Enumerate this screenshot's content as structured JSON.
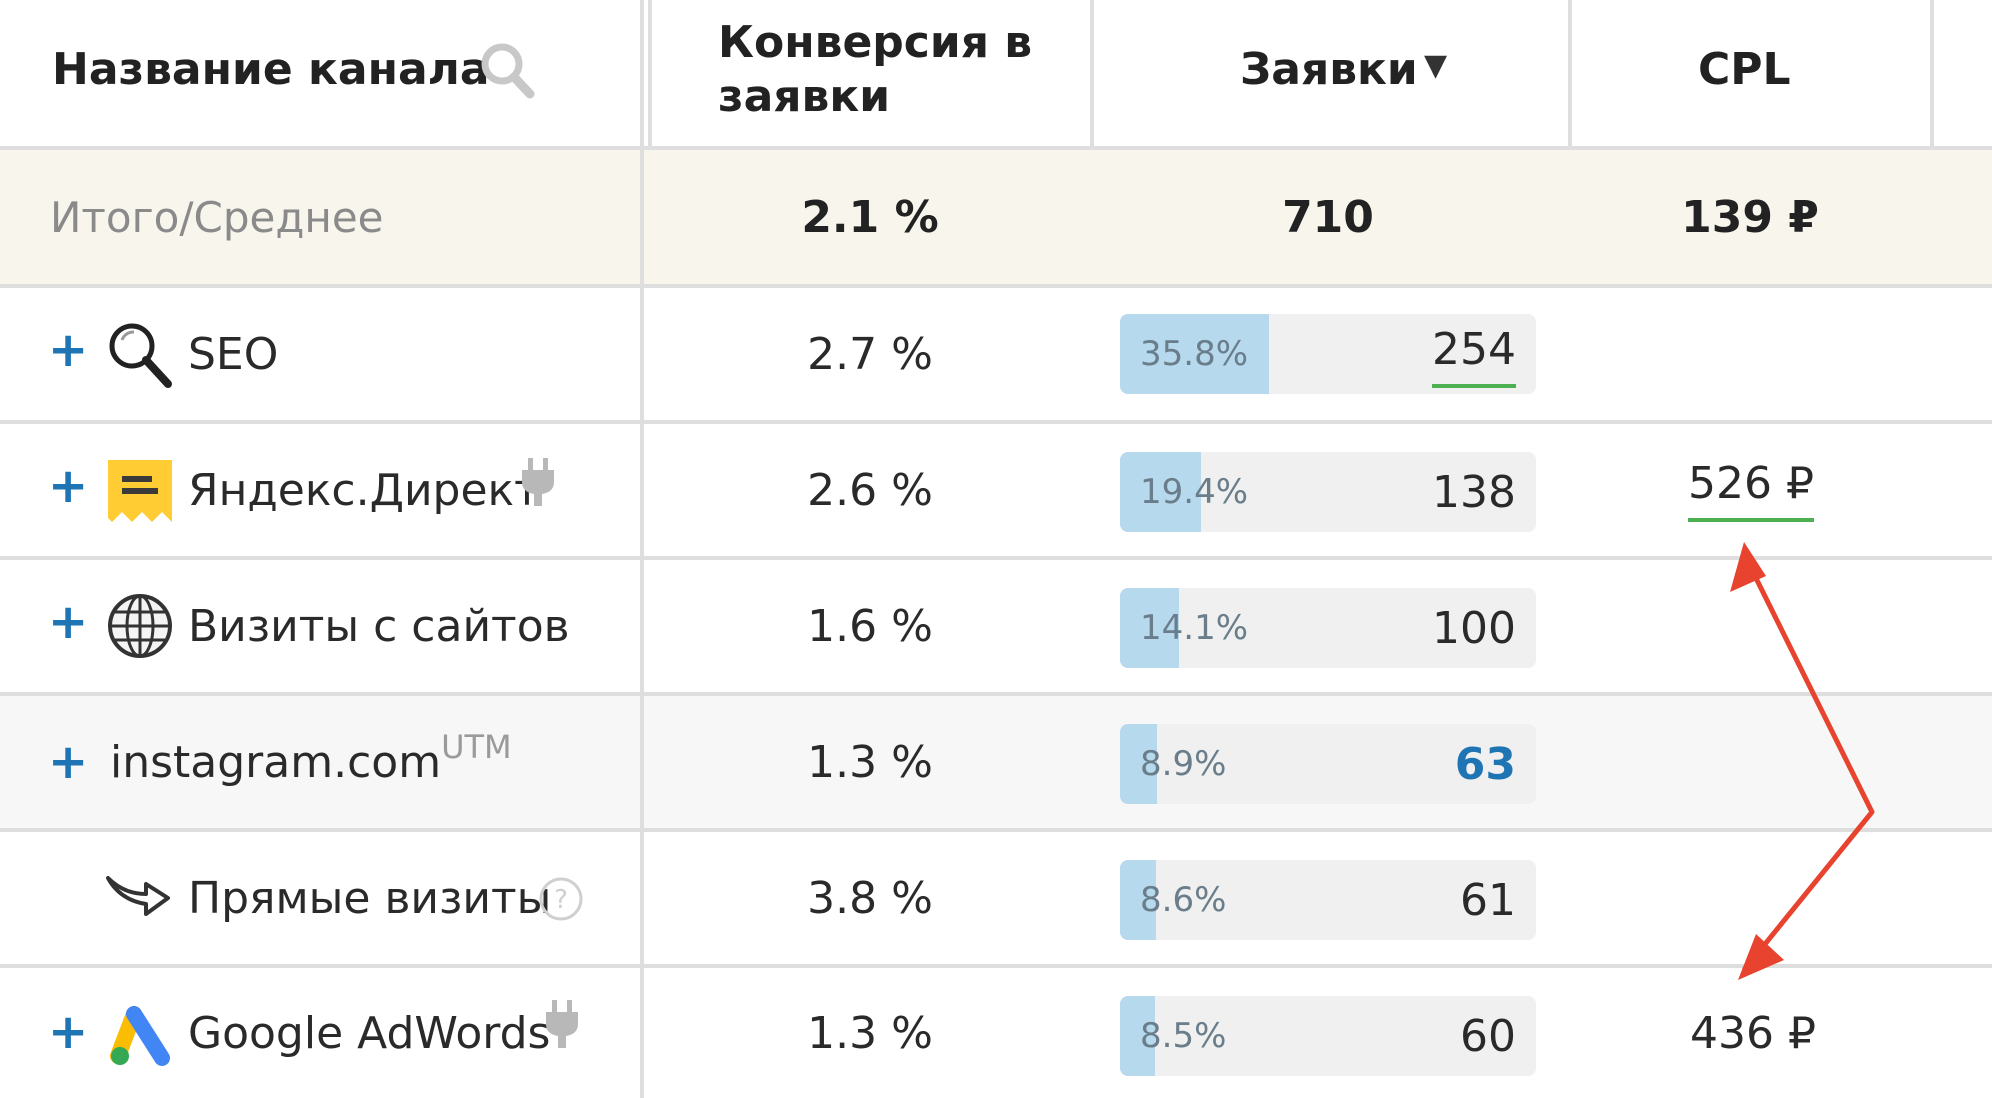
{
  "header": {
    "channel_name": "Название канала",
    "conversion_line1": "Конверсия в",
    "conversion_line2": "заявки",
    "leads": "Заявки",
    "sort_indicator": "▼",
    "cpl": "CPL"
  },
  "totals": {
    "label": "Итого/Среднее",
    "conversion": "2.1 %",
    "leads": "710",
    "cpl": "139 ₽"
  },
  "rows": [
    {
      "name": "SEO",
      "icon": "magnifier-icon",
      "expandable": true,
      "conversion": "2.7 %",
      "share_label": "35.8%",
      "share": 35.8,
      "leads": "254",
      "cpl": ""
    },
    {
      "name": "Яндекс.Директ",
      "icon": "yandex-direct-icon",
      "expandable": true,
      "plugin": true,
      "conversion": "2.6 %",
      "share_label": "19.4%",
      "share": 19.4,
      "leads": "138",
      "cpl": "526 ₽"
    },
    {
      "name": "Визиты с сайтов",
      "icon": "globe-icon",
      "expandable": true,
      "conversion": "1.6 %",
      "share_label": "14.1%",
      "share": 14.1,
      "leads": "100",
      "cpl": ""
    },
    {
      "name": "instagram.com",
      "suffix": "UTM",
      "expandable": true,
      "conversion": "1.3 %",
      "share_label": "8.9%",
      "share": 8.9,
      "leads": "63",
      "cpl": ""
    },
    {
      "name": "Прямые визиты",
      "icon": "direct-visit-icon",
      "expandable": false,
      "help": true,
      "conversion": "3.8 %",
      "share_label": "8.6%",
      "share": 8.6,
      "leads": "61",
      "cpl": ""
    },
    {
      "name": "Google AdWords",
      "icon": "google-ads-icon",
      "expandable": true,
      "plugin": true,
      "conversion": "1.3 %",
      "share_label": "8.5%",
      "share": 8.5,
      "leads": "60",
      "cpl": "436 ₽"
    }
  ],
  "colors": {
    "accent_blue": "#1f75b4",
    "bar_fill": "#b6d9ee",
    "totals_bg": "#f7f5ec",
    "highlight_underline": "#4caf50",
    "arrow": "#e8432e"
  },
  "plus_symbol": "+"
}
